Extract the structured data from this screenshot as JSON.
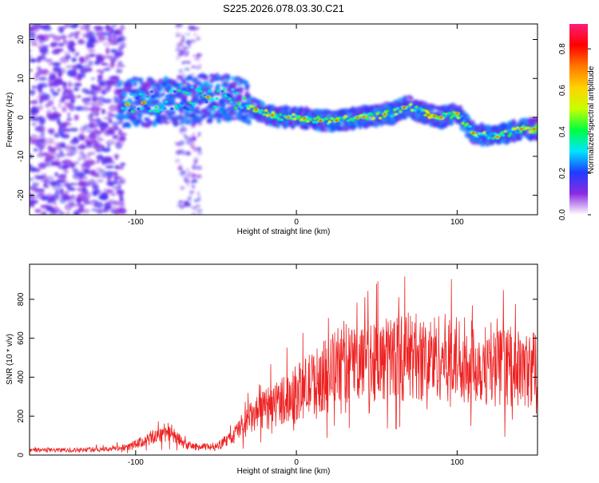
{
  "title": "S225.2026.078.03.30.C21",
  "chart_data": [
    {
      "type": "heatmap",
      "xlabel": "Height of straight line (km)",
      "ylabel": "Frequency (Hz)",
      "xlim": [
        -166,
        150
      ],
      "ylim": [
        -25,
        24
      ],
      "xticks": [
        -100,
        0,
        100
      ],
      "yticks": [
        -20,
        -10,
        0,
        10,
        20
      ],
      "ridge": [
        {
          "x": -155,
          "y": 2
        },
        {
          "x": -140,
          "y": 1
        },
        {
          "x": -120,
          "y": 3
        },
        {
          "x": -100,
          "y": 4
        },
        {
          "x": -80,
          "y": 4
        },
        {
          "x": -60,
          "y": 5
        },
        {
          "x": -40,
          "y": 5
        },
        {
          "x": -25,
          "y": 2
        },
        {
          "x": -10,
          "y": 0
        },
        {
          "x": 0,
          "y": 0
        },
        {
          "x": 20,
          "y": -1
        },
        {
          "x": 40,
          "y": 0
        },
        {
          "x": 60,
          "y": 1
        },
        {
          "x": 70,
          "y": 3
        },
        {
          "x": 80,
          "y": 1
        },
        {
          "x": 90,
          "y": 0
        },
        {
          "x": 100,
          "y": 1
        },
        {
          "x": 110,
          "y": -4
        },
        {
          "x": 125,
          "y": -5
        },
        {
          "x": 140,
          "y": -3
        },
        {
          "x": 150,
          "y": -3
        }
      ],
      "colorbar": {
        "label": "Normalized spectral amplitude",
        "range": [
          0,
          0.92
        ],
        "ticks": [
          "0.0",
          "0.2",
          "0.4",
          "0.6",
          "0.8"
        ],
        "colors": [
          "#ffffff",
          "#8a2be2",
          "#1e3cff",
          "#00e5ff",
          "#00ff40",
          "#c8ff00",
          "#ffd200",
          "#ff7800",
          "#ff0000",
          "#ff1e78"
        ]
      }
    },
    {
      "type": "line",
      "xlabel": "Height of straight line (km)",
      "ylabel": "SNR (10 * v/v)",
      "xlim": [
        -166,
        150
      ],
      "ylim": [
        0,
        980
      ],
      "xticks": [
        -100,
        0,
        100
      ],
      "yticks": [
        0,
        200,
        400,
        600,
        800
      ],
      "color": "#ee2222",
      "series": [
        {
          "name": "SNR",
          "x": [
            -166,
            -140,
            -120,
            -105,
            -95,
            -88,
            -84,
            -80,
            -76,
            -72,
            -68,
            -60,
            -52,
            -46,
            -40,
            -34,
            -28,
            -22,
            -16,
            -10,
            -4,
            2,
            8,
            14,
            20,
            26,
            30,
            36,
            42,
            48,
            54,
            60,
            66,
            72,
            78,
            84,
            90,
            96,
            102,
            108,
            114,
            120,
            126,
            132,
            138,
            144,
            150
          ],
          "y": [
            25,
            25,
            30,
            40,
            70,
            95,
            110,
            130,
            95,
            70,
            50,
            40,
            45,
            60,
            90,
            150,
            190,
            220,
            250,
            280,
            300,
            330,
            360,
            390,
            420,
            460,
            480,
            470,
            490,
            500,
            480,
            510,
            500,
            520,
            490,
            500,
            510,
            490,
            500,
            480,
            470,
            460,
            450,
            460,
            440,
            430,
            470
          ]
        }
      ]
    }
  ]
}
